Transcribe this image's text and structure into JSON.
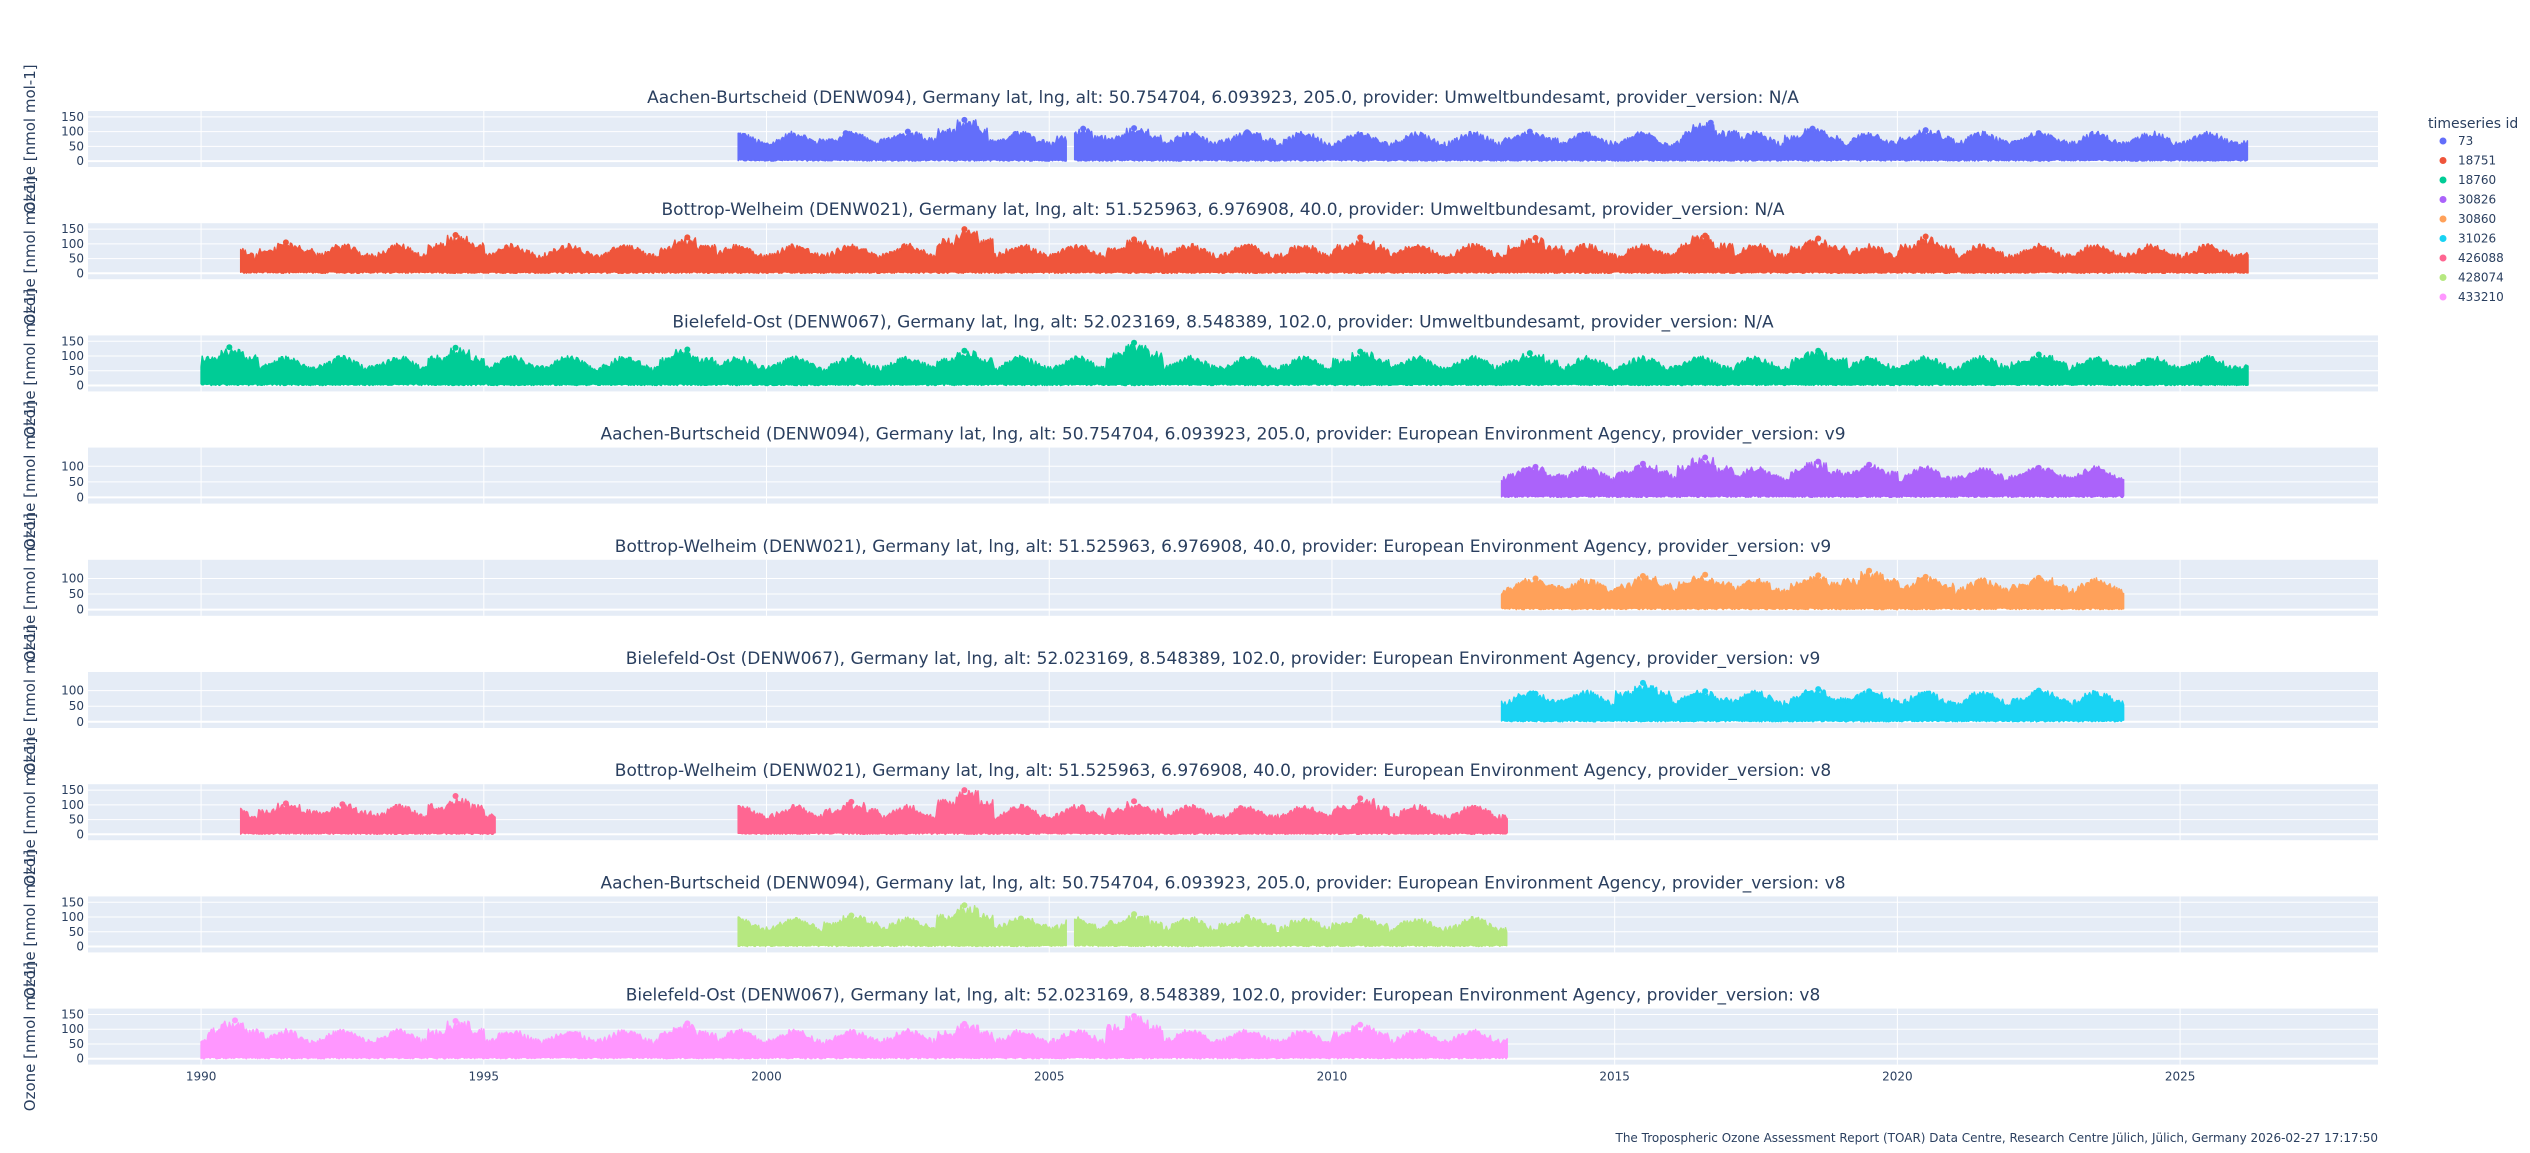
{
  "chart_data": {
    "type": "scatter",
    "xlabel": "",
    "ylabel": "Ozone [nmol mol-1]",
    "xlim": [
      1988.0,
      2028.5
    ],
    "x_ticks": [
      1990,
      1995,
      2000,
      2005,
      2010,
      2015,
      2020,
      2025
    ],
    "legend_title": "timeseries id",
    "legend_position": "right",
    "grid": true,
    "footer": "The Tropospheric Ozone Assessment Report (TOAR) Data Centre, Research Centre Jülich, Jülich, Germany 2026-02-27 17:17:50",
    "panels": [
      {
        "title": "Aachen-Burtscheid (DENW094), Germany lat, lng, alt: 50.754704, 6.093923, 205.0, provider: Umweltbundesamt, provider_version: N/A",
        "series_name": "73",
        "color": "#636efa",
        "y_ticks": [
          0,
          50,
          100,
          150
        ],
        "ylim": [
          -20,
          170
        ],
        "segments": [
          [
            1999.5,
            2005.3
          ],
          [
            2005.45,
            2026.2
          ]
        ],
        "peaks": [
          [
            2001.4,
            95
          ],
          [
            2002.5,
            100
          ],
          [
            2003.5,
            140
          ],
          [
            2004.4,
            92
          ],
          [
            2005.6,
            110
          ],
          [
            2006.5,
            112
          ],
          [
            2008.5,
            98
          ],
          [
            2013.5,
            100
          ],
          [
            2016.7,
            130
          ],
          [
            2018.5,
            110
          ],
          [
            2020.5,
            105
          ],
          [
            2022.5,
            95
          ]
        ]
      },
      {
        "title": "Bottrop-Welheim (DENW021), Germany lat, lng, alt: 51.525963, 6.976908, 40.0, provider: Umweltbundesamt, provider_version: N/A",
        "series_name": "18751",
        "color": "#ef553b",
        "y_ticks": [
          0,
          50,
          100,
          150
        ],
        "ylim": [
          -20,
          170
        ],
        "segments": [
          [
            1990.7,
            2026.2
          ]
        ],
        "peaks": [
          [
            1991.5,
            105
          ],
          [
            1994.5,
            130
          ],
          [
            1998.6,
            122
          ],
          [
            2003.5,
            150
          ],
          [
            2006.5,
            115
          ],
          [
            2010.5,
            122
          ],
          [
            2013.6,
            120
          ],
          [
            2016.6,
            128
          ],
          [
            2018.6,
            118
          ],
          [
            2020.5,
            125
          ]
        ]
      },
      {
        "title": "Bielefeld-Ost (DENW067), Germany lat, lng, alt: 52.023169, 8.548389, 102.0, provider: Umweltbundesamt, provider_version: N/A",
        "series_name": "18760",
        "color": "#00cc96",
        "y_ticks": [
          0,
          50,
          100,
          150
        ],
        "ylim": [
          -20,
          170
        ],
        "segments": [
          [
            1990.0,
            2026.2
          ]
        ],
        "peaks": [
          [
            1990.5,
            130
          ],
          [
            1994.5,
            128
          ],
          [
            1998.6,
            122
          ],
          [
            2003.5,
            118
          ],
          [
            2006.5,
            145
          ],
          [
            2010.5,
            115
          ],
          [
            2013.5,
            110
          ],
          [
            2018.6,
            118
          ],
          [
            2022.5,
            105
          ]
        ]
      },
      {
        "title": "Aachen-Burtscheid (DENW094), Germany lat, lng, alt: 50.754704, 6.093923, 205.0, provider: European Environment Agency, provider_version: v9",
        "series_name": "30826",
        "color": "#ab63fa",
        "y_ticks": [
          0,
          50,
          100
        ],
        "ylim": [
          -20,
          160
        ],
        "segments": [
          [
            2013.0,
            2024.0
          ]
        ],
        "peaks": [
          [
            2013.6,
            98
          ],
          [
            2015.5,
            108
          ],
          [
            2016.6,
            128
          ],
          [
            2018.6,
            115
          ],
          [
            2019.5,
            105
          ],
          [
            2022.5,
            95
          ]
        ]
      },
      {
        "title": "Bottrop-Welheim (DENW021), Germany lat, lng, alt: 51.525963, 6.976908, 40.0, provider: European Environment Agency, provider_version: v9",
        "series_name": "30860",
        "color": "#ffa15a",
        "y_ticks": [
          0,
          50,
          100
        ],
        "ylim": [
          -20,
          160
        ],
        "segments": [
          [
            2013.0,
            2024.0
          ]
        ],
        "peaks": [
          [
            2013.6,
            100
          ],
          [
            2015.5,
            108
          ],
          [
            2016.6,
            112
          ],
          [
            2018.6,
            110
          ],
          [
            2019.5,
            125
          ],
          [
            2020.5,
            105
          ],
          [
            2022.5,
            102
          ]
        ]
      },
      {
        "title": "Bielefeld-Ost (DENW067), Germany lat, lng, alt: 52.023169, 8.548389, 102.0, provider: European Environment Agency, provider_version: v9",
        "series_name": "31026",
        "color": "#19d3f3",
        "y_ticks": [
          0,
          50,
          100
        ],
        "ylim": [
          -20,
          160
        ],
        "segments": [
          [
            2013.0,
            2024.0
          ]
        ],
        "peaks": [
          [
            2013.6,
            90
          ],
          [
            2015.5,
            125
          ],
          [
            2016.6,
            98
          ],
          [
            2018.6,
            105
          ],
          [
            2019.5,
            98
          ],
          [
            2022.5,
            100
          ]
        ]
      },
      {
        "title": "Bottrop-Welheim (DENW021), Germany lat, lng, alt: 51.525963, 6.976908, 40.0, provider: European Environment Agency, provider_version: v8",
        "series_name": "426088",
        "color": "#ff6692",
        "y_ticks": [
          0,
          50,
          100,
          150
        ],
        "ylim": [
          -20,
          170
        ],
        "segments": [
          [
            1990.7,
            1995.2
          ],
          [
            1999.5,
            2013.1
          ]
        ],
        "peaks": [
          [
            1991.5,
            105
          ],
          [
            1992.5,
            102
          ],
          [
            1994.5,
            130
          ],
          [
            2001.5,
            110
          ],
          [
            2003.5,
            150
          ],
          [
            2006.5,
            112
          ],
          [
            2010.5,
            122
          ]
        ]
      },
      {
        "title": "Aachen-Burtscheid (DENW094), Germany lat, lng, alt: 50.754704, 6.093923, 205.0, provider: European Environment Agency, provider_version: v8",
        "series_name": "428074",
        "color": "#b6e880",
        "y_ticks": [
          0,
          50,
          100,
          150
        ],
        "ylim": [
          -20,
          170
        ],
        "segments": [
          [
            1999.5,
            2005.3
          ],
          [
            2005.45,
            2013.1
          ]
        ],
        "peaks": [
          [
            2001.5,
            105
          ],
          [
            2003.5,
            140
          ],
          [
            2004.5,
            95
          ],
          [
            2006.5,
            110
          ],
          [
            2008.5,
            100
          ],
          [
            2010.5,
            100
          ]
        ]
      },
      {
        "title": "Bielefeld-Ost (DENW067), Germany lat, lng, alt: 52.023169, 8.548389, 102.0, provider: European Environment Agency, provider_version: v8",
        "series_name": "433210",
        "color": "#ff97ff",
        "y_ticks": [
          0,
          50,
          100,
          150
        ],
        "ylim": [
          -20,
          170
        ],
        "segments": [
          [
            1990.0,
            2013.1
          ]
        ],
        "peaks": [
          [
            1990.6,
            130
          ],
          [
            1994.5,
            128
          ],
          [
            1998.6,
            120
          ],
          [
            2003.5,
            118
          ],
          [
            2006.5,
            145
          ],
          [
            2010.5,
            115
          ]
        ]
      }
    ]
  }
}
